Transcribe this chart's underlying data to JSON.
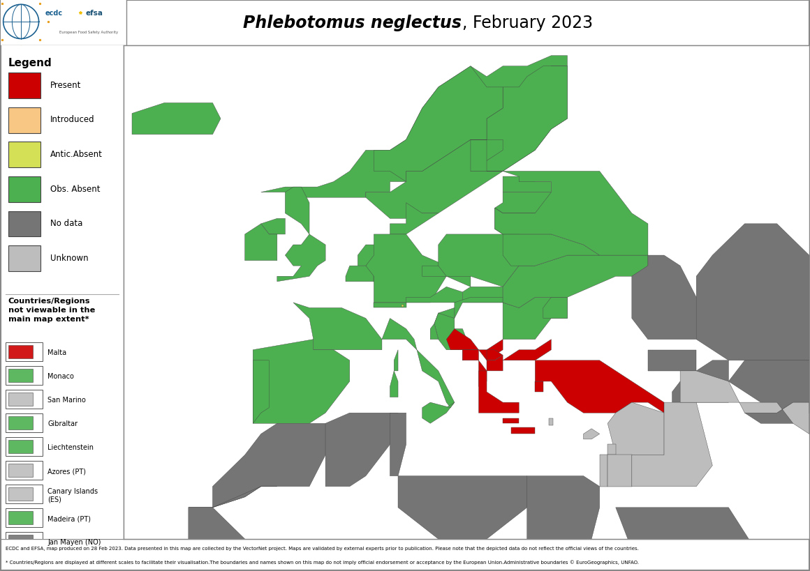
{
  "title_italic": "Phlebotomus neglectus",
  "title_normal": ", February 2023",
  "legend_title": "Legend",
  "legend_items": [
    {
      "label": "Present",
      "color": "#cc0000"
    },
    {
      "label": "Introduced",
      "color": "#f9c784"
    },
    {
      "label": "Antic.Absent",
      "color": "#d4e157"
    },
    {
      "label": "Obs. Absent",
      "color": "#4caf50"
    },
    {
      "label": "No data",
      "color": "#757575"
    },
    {
      "label": "Unknown",
      "color": "#bdbdbd"
    }
  ],
  "inset_title": "Countries/Regions\nnot viewable in the\nmain map extent*",
  "inset_items": [
    {
      "label": "Malta",
      "color": "#cc0000",
      "bg": "#ffffff"
    },
    {
      "label": "Monaco",
      "color": "#4caf50",
      "bg": "#4caf50"
    },
    {
      "label": "San Marino",
      "color": "#bdbdbd",
      "bg": "#bdbdbd"
    },
    {
      "label": "Gibraltar",
      "color": "#4caf50",
      "bg": "#4caf50"
    },
    {
      "label": "Liechtenstein",
      "color": "#4caf50",
      "bg": "#4caf50"
    },
    {
      "label": "Azores (PT)",
      "color": "#bdbdbd",
      "bg": "#ffffff"
    },
    {
      "label": "Canary Islands\n(ES)",
      "color": "#bdbdbd",
      "bg": "#ffffff"
    },
    {
      "label": "Madeira (PT)",
      "color": "#4caf50",
      "bg": "#ffffff"
    },
    {
      "label": "Jan Mayen (NO)",
      "color": "#757575",
      "bg": "#ffffff"
    }
  ],
  "footer_line1": "ECDC and EFSA, map produced on 28 Feb 2023. Data presented in this map are collected by the VectorNet project. Maps are validated by external experts prior to publication. Please note that the depicted data do not reflect the official views of the countries.",
  "footer_line2": "* Countries/Regions are displayed at different scales to facilitate their visualisation.The boundaries and names shown on this map do not imply official endorsement or acceptance by the European Union.Administrative boundaries © EuroGeographics, UNFAO.",
  "colors": {
    "present": "#cc0000",
    "introduced": "#f9c784",
    "antic_absent": "#d4e157",
    "obs_absent": "#4caf50",
    "no_data": "#757575",
    "unknown": "#bdbdbd",
    "ocean": "#ffffff",
    "edge": "#555555"
  },
  "map_xlim": [
    -25,
    60
  ],
  "map_ylim": [
    25,
    72
  ]
}
